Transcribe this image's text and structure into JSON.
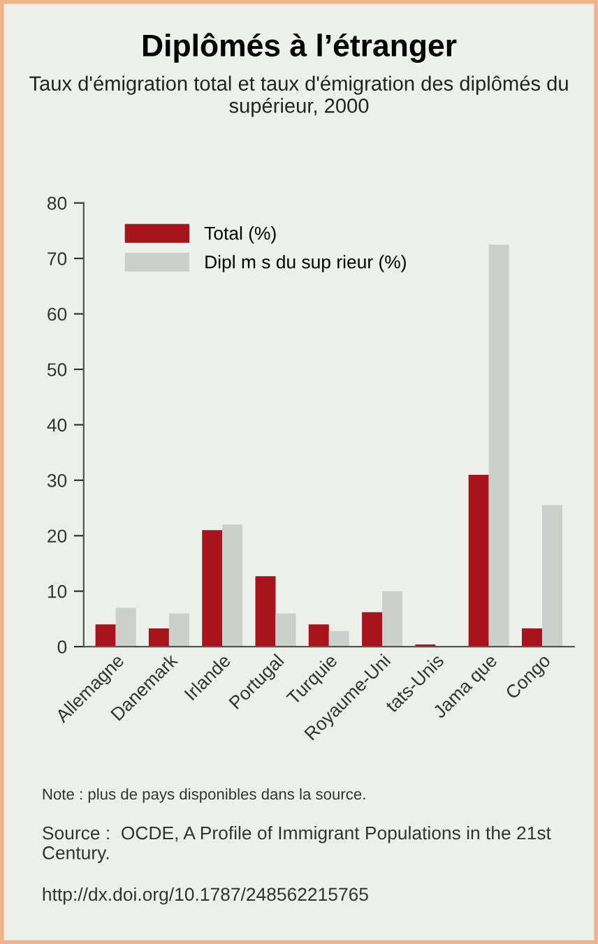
{
  "chart_data": {
    "type": "bar",
    "title": "Diplômés à l’étranger",
    "subtitle": "Taux d'émigration total et taux d'émigration des diplômés du supérieur, 2000",
    "categories": [
      "Allemagne",
      "Danemark",
      "Irlande",
      "Portugal",
      "Turquie",
      "Royaume-Uni",
      "tats-Unis",
      "Jama que",
      "Congo"
    ],
    "series": [
      {
        "name": "Total (%)",
        "color": "#a8141c",
        "values": [
          4,
          3.3,
          21,
          12.7,
          4,
          6.2,
          0.4,
          31,
          3.3
        ]
      },
      {
        "name": "Dipl m s du sup rieur (%)",
        "color": "#cdcfcd",
        "values": [
          7,
          6,
          22,
          6,
          2.8,
          10,
          0,
          72.5,
          25.5
        ]
      }
    ],
    "ylim": [
      0,
      80
    ],
    "yticks": [
      0,
      10,
      20,
      30,
      40,
      50,
      60,
      70,
      80
    ],
    "grid": false,
    "legend": "top left",
    "annotations": [
      "Note : plus de pays disponibles dans la source.",
      "Source :  OCDE, A Profile of Immigrant Populations in the 21st Century.",
      "http://dx.doi.org/10.1787/248562215765"
    ]
  }
}
